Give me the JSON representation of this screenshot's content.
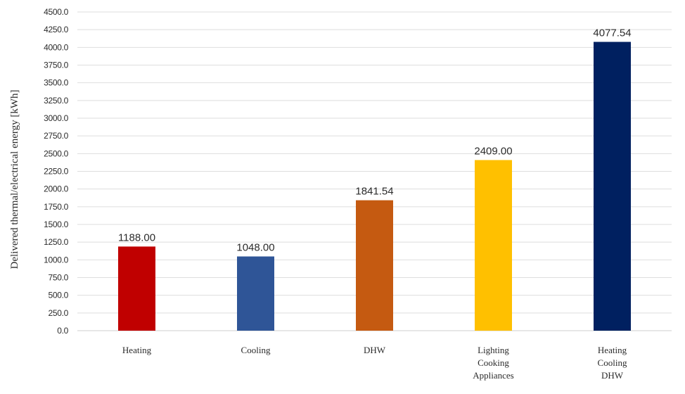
{
  "chart_data": {
    "type": "bar",
    "categories": [
      [
        "Heating"
      ],
      [
        "Cooling"
      ],
      [
        "DHW"
      ],
      [
        "Lighting",
        "Cooking",
        "Appliances"
      ],
      [
        "Heating",
        "Cooling",
        "DHW"
      ]
    ],
    "values": [
      1188.0,
      1048.0,
      1841.54,
      2409.0,
      4077.54
    ],
    "data_labels": [
      "1188.00",
      "1048.00",
      "1841.54",
      "2409.00",
      "4077.54"
    ],
    "colors": [
      "#c00000",
      "#2f5597",
      "#c55a11",
      "#ffc000",
      "#002060"
    ],
    "ylabel": "Delivered thermal/electrical energy [kWh]",
    "xlabel": "",
    "title": "",
    "ylim": [
      0,
      4500
    ],
    "ytick_step": 250,
    "ytick_decimals": 1,
    "grid": true,
    "legend": "none"
  }
}
